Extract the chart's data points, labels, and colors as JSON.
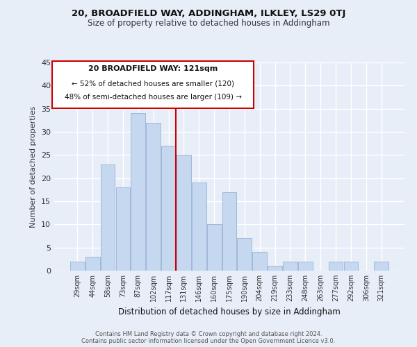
{
  "title": "20, BROADFIELD WAY, ADDINGHAM, ILKLEY, LS29 0TJ",
  "subtitle": "Size of property relative to detached houses in Addingham",
  "xlabel": "Distribution of detached houses by size in Addingham",
  "ylabel": "Number of detached properties",
  "bar_labels": [
    "29sqm",
    "44sqm",
    "58sqm",
    "73sqm",
    "87sqm",
    "102sqm",
    "117sqm",
    "131sqm",
    "146sqm",
    "160sqm",
    "175sqm",
    "190sqm",
    "204sqm",
    "219sqm",
    "233sqm",
    "248sqm",
    "263sqm",
    "277sqm",
    "292sqm",
    "306sqm",
    "321sqm"
  ],
  "bar_values": [
    2,
    3,
    23,
    18,
    34,
    32,
    27,
    25,
    19,
    10,
    17,
    7,
    4,
    1,
    2,
    2,
    0,
    2,
    2,
    0,
    2
  ],
  "bar_color": "#c5d8f0",
  "bar_edge_color": "#a0b8d8",
  "vline_color": "#cc0000",
  "annotation_title": "20 BROADFIELD WAY: 121sqm",
  "annotation_line1": "← 52% of detached houses are smaller (120)",
  "annotation_line2": "48% of semi-detached houses are larger (109) →",
  "annotation_box_edge": "#cc0000",
  "annotation_box_face": "#ffffff",
  "ylim": [
    0,
    45
  ],
  "yticks": [
    0,
    5,
    10,
    15,
    20,
    25,
    30,
    35,
    40,
    45
  ],
  "footer1": "Contains HM Land Registry data © Crown copyright and database right 2024.",
  "footer2": "Contains public sector information licensed under the Open Government Licence v3.0.",
  "background_color": "#e8eef8",
  "plot_bg_color": "#e8eef8"
}
